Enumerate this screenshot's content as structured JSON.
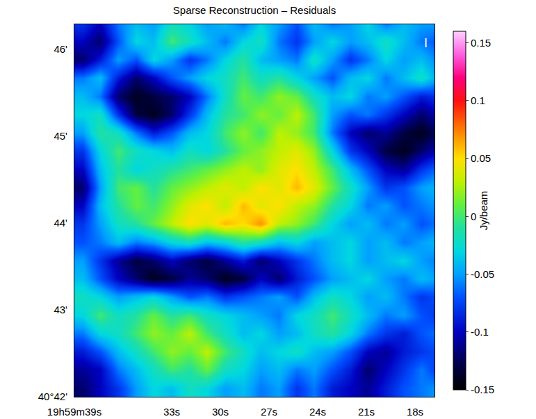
{
  "chart_data": {
    "type": "heatmap",
    "title": "Sparse Reconstruction – Residuals",
    "x": [
      38.5,
      37.4,
      36.3,
      35.2,
      34.1,
      33.0,
      31.9,
      30.8,
      29.7,
      28.6,
      27.5,
      26.4,
      25.3,
      24.2,
      23.1,
      22.0,
      20.9,
      19.8,
      18.7,
      17.6,
      16.5
    ],
    "y": [
      42.1,
      42.31,
      42.52,
      42.73,
      42.94,
      43.15,
      43.36,
      43.57,
      43.78,
      43.99,
      44.2,
      44.41,
      44.62,
      44.83,
      45.04,
      45.25,
      45.46,
      45.67,
      45.88,
      46.09,
      46.3
    ],
    "z": [
      [
        -0.12,
        -0.1,
        -0.08,
        -0.05,
        -0.03,
        -0.04,
        -0.02,
        -0.03,
        -0.05,
        -0.04,
        -0.06,
        -0.05,
        -0.08,
        -0.06,
        -0.09,
        -0.1,
        -0.11,
        -0.09,
        -0.07,
        -0.06,
        -0.05
      ],
      [
        -0.11,
        -0.1,
        -0.06,
        -0.04,
        -0.02,
        0.0,
        -0.01,
        0.01,
        -0.02,
        -0.03,
        -0.05,
        -0.04,
        -0.06,
        -0.05,
        -0.07,
        -0.09,
        -0.12,
        -0.1,
        -0.08,
        -0.06,
        -0.08
      ],
      [
        -0.09,
        -0.07,
        -0.04,
        -0.02,
        0.0,
        0.02,
        0.01,
        0.03,
        0.0,
        -0.02,
        -0.04,
        -0.03,
        -0.02,
        -0.04,
        -0.05,
        -0.07,
        -0.1,
        -0.11,
        -0.09,
        -0.08,
        -0.07
      ],
      [
        -0.06,
        -0.03,
        -0.02,
        0.0,
        0.02,
        0.01,
        0.03,
        0.0,
        -0.02,
        -0.04,
        -0.03,
        -0.05,
        -0.04,
        -0.02,
        -0.01,
        -0.03,
        -0.06,
        -0.08,
        -0.09,
        -0.07,
        -0.06
      ],
      [
        -0.03,
        0.0,
        -0.02,
        -0.01,
        0.01,
        -0.01,
        0.0,
        -0.02,
        -0.03,
        -0.04,
        -0.05,
        -0.06,
        -0.03,
        -0.02,
        0.0,
        -0.02,
        -0.04,
        -0.06,
        -0.05,
        -0.07,
        -0.08
      ],
      [
        -0.02,
        -0.03,
        -0.05,
        -0.04,
        -0.03,
        -0.05,
        -0.07,
        -0.06,
        -0.08,
        -0.07,
        -0.06,
        -0.05,
        -0.07,
        -0.04,
        -0.02,
        -0.03,
        -0.05,
        -0.04,
        -0.06,
        -0.08,
        -0.07
      ],
      [
        -0.04,
        -0.07,
        -0.1,
        -0.12,
        -0.14,
        -0.13,
        -0.11,
        -0.12,
        -0.14,
        -0.13,
        -0.1,
        -0.12,
        -0.09,
        -0.07,
        -0.05,
        -0.04,
        -0.03,
        -0.05,
        -0.06,
        -0.04,
        -0.05
      ],
      [
        -0.05,
        -0.08,
        -0.11,
        -0.13,
        -0.12,
        -0.1,
        -0.12,
        -0.13,
        -0.11,
        -0.09,
        -0.12,
        -0.1,
        -0.08,
        -0.06,
        -0.04,
        -0.03,
        -0.05,
        -0.04,
        -0.03,
        -0.05,
        -0.06
      ],
      [
        -0.07,
        -0.06,
        -0.04,
        -0.06,
        -0.05,
        -0.03,
        -0.02,
        -0.04,
        -0.03,
        -0.01,
        -0.02,
        -0.04,
        -0.03,
        -0.05,
        -0.04,
        -0.03,
        -0.05,
        -0.04,
        -0.06,
        -0.05,
        -0.04
      ],
      [
        -0.08,
        -0.05,
        -0.02,
        -0.01,
        0.01,
        0.03,
        0.05,
        0.04,
        0.06,
        0.05,
        0.07,
        0.03,
        0.02,
        0.0,
        -0.03,
        -0.05,
        -0.04,
        -0.06,
        -0.05,
        -0.07,
        -0.06
      ],
      [
        -0.1,
        -0.04,
        -0.01,
        0.01,
        0.0,
        0.02,
        0.04,
        0.05,
        0.03,
        0.06,
        0.04,
        0.05,
        0.03,
        0.02,
        -0.01,
        -0.03,
        -0.06,
        -0.05,
        -0.07,
        -0.06,
        -0.05
      ],
      [
        -0.12,
        -0.05,
        0.0,
        0.01,
        -0.01,
        0.01,
        0.02,
        0.03,
        0.04,
        0.03,
        0.05,
        0.04,
        0.06,
        0.04,
        0.01,
        -0.02,
        -0.05,
        -0.08,
        -0.07,
        -0.05,
        -0.04
      ],
      [
        -0.1,
        -0.04,
        -0.01,
        -0.03,
        -0.02,
        -0.01,
        0.0,
        0.01,
        0.02,
        0.03,
        0.02,
        0.04,
        0.05,
        0.03,
        0.0,
        -0.04,
        -0.07,
        -0.1,
        -0.11,
        -0.08,
        -0.06
      ],
      [
        -0.08,
        -0.03,
        0.0,
        -0.02,
        -0.03,
        -0.04,
        -0.02,
        -0.03,
        -0.01,
        0.01,
        0.02,
        0.03,
        0.04,
        0.02,
        -0.03,
        -0.08,
        -0.1,
        -0.13,
        -0.14,
        -0.12,
        -0.1
      ],
      [
        -0.05,
        -0.01,
        -0.02,
        -0.06,
        -0.09,
        -0.07,
        -0.04,
        -0.03,
        0.0,
        0.02,
        0.0,
        0.03,
        0.02,
        0.0,
        -0.06,
        -0.1,
        -0.12,
        -0.11,
        -0.13,
        -0.14,
        -0.12
      ],
      [
        -0.03,
        -0.02,
        -0.08,
        -0.13,
        -0.14,
        -0.12,
        -0.08,
        -0.04,
        -0.01,
        0.0,
        0.02,
        0.01,
        0.03,
        0.0,
        -0.05,
        -0.07,
        -0.06,
        -0.08,
        -0.1,
        -0.12,
        -0.1
      ],
      [
        -0.04,
        -0.06,
        -0.12,
        -0.14,
        -0.13,
        -0.12,
        -0.1,
        -0.06,
        -0.02,
        0.01,
        0.0,
        0.02,
        0.01,
        -0.02,
        -0.04,
        -0.03,
        -0.06,
        -0.05,
        -0.07,
        -0.09,
        -0.08
      ],
      [
        -0.06,
        -0.04,
        -0.09,
        -0.12,
        -0.1,
        -0.07,
        -0.05,
        -0.03,
        -0.02,
        0.0,
        -0.02,
        -0.01,
        -0.03,
        -0.05,
        -0.07,
        -0.04,
        -0.03,
        -0.06,
        -0.04,
        -0.02,
        -0.05
      ],
      [
        -0.12,
        -0.09,
        -0.05,
        -0.07,
        -0.03,
        -0.05,
        -0.08,
        -0.06,
        -0.03,
        -0.01,
        -0.04,
        -0.05,
        -0.06,
        -0.02,
        -0.05,
        -0.08,
        -0.06,
        -0.03,
        -0.05,
        -0.04,
        -0.06
      ],
      [
        -0.1,
        -0.12,
        -0.07,
        -0.03,
        -0.04,
        0.0,
        -0.02,
        -0.04,
        -0.06,
        -0.03,
        -0.02,
        -0.06,
        -0.08,
        -0.05,
        -0.03,
        -0.05,
        -0.04,
        -0.02,
        -0.04,
        -0.06,
        -0.07
      ],
      [
        -0.08,
        -0.1,
        -0.06,
        -0.04,
        -0.05,
        -0.02,
        -0.03,
        -0.05,
        -0.04,
        -0.06,
        -0.03,
        -0.05,
        -0.07,
        -0.04,
        -0.06,
        -0.05,
        -0.03,
        -0.06,
        -0.04,
        -0.05,
        -0.05
      ]
    ],
    "xlim": [
      39,
      16.8
    ],
    "ylim": [
      42,
      46.29
    ],
    "xticks": [
      {
        "value": 39,
        "label": "19h59m39s"
      },
      {
        "value": 33,
        "label": "33s"
      },
      {
        "value": 30,
        "label": "30s"
      },
      {
        "value": 27,
        "label": "27s"
      },
      {
        "value": 24,
        "label": "24s"
      },
      {
        "value": 21,
        "label": "21s"
      },
      {
        "value": 18,
        "label": "18s"
      }
    ],
    "yticks": [
      {
        "value": 42,
        "label": "40°42'"
      },
      {
        "value": 43,
        "label": "43'"
      },
      {
        "value": 44,
        "label": "44'"
      },
      {
        "value": 45,
        "label": "45'"
      },
      {
        "value": 46,
        "label": "46'"
      }
    ],
    "colorbar": {
      "title": "Jy/beam",
      "range": [
        -0.15,
        0.16
      ],
      "ticks": [
        -0.15,
        -0.1,
        -0.05,
        0,
        0.05,
        0.1,
        0.15
      ]
    },
    "annotations": [
      "I"
    ],
    "grid": false
  }
}
